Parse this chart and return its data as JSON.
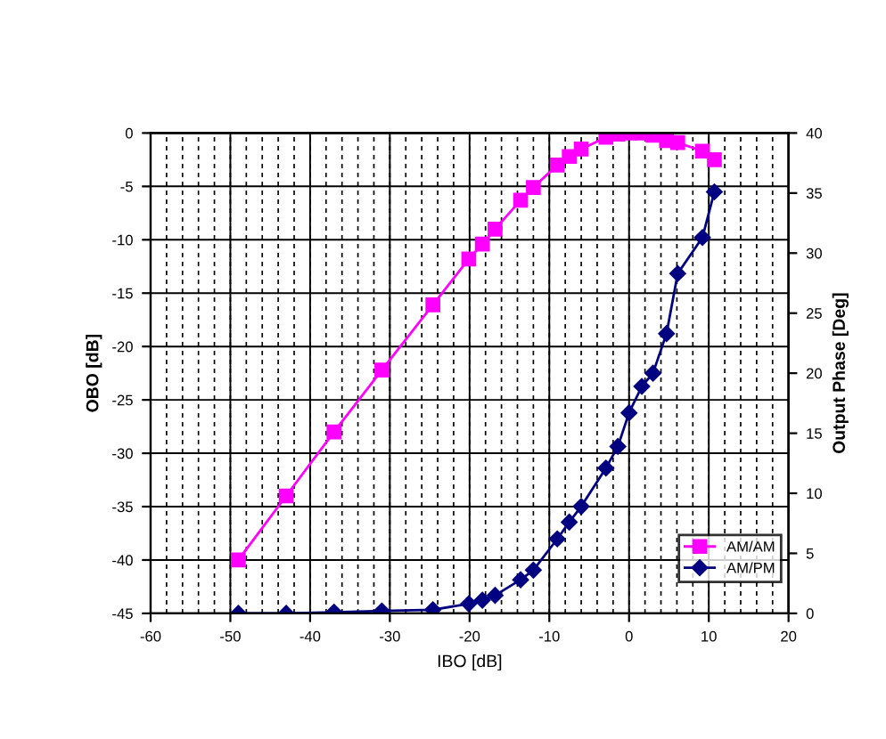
{
  "chart_data": {
    "type": "line",
    "xlabel": "IBO [dB]",
    "ylabel": "OBO [dB]",
    "y2label": "Output Phase [Deg]",
    "xlim": [
      -60,
      20
    ],
    "xticks": [
      -60,
      -50,
      -40,
      -30,
      -20,
      -10,
      0,
      10,
      20
    ],
    "ylim": [
      -45,
      0
    ],
    "yticks": [
      -45,
      -40,
      -35,
      -30,
      -25,
      -20,
      -15,
      -10,
      -5,
      0
    ],
    "y2lim": [
      0,
      40
    ],
    "y2ticks": [
      0,
      5,
      10,
      15,
      20,
      25,
      30,
      35,
      40
    ],
    "grid": true,
    "legend": "bottom right",
    "line_style": "solid",
    "series": [
      {
        "name": "AM/AM",
        "color": "#ff00ff",
        "marker": "square",
        "x": [
          -49,
          -43,
          -37,
          -31,
          -24.6,
          -20.1,
          -18.4,
          -16.8,
          -13.6,
          -12,
          -9,
          -7.5,
          -6,
          -2.9,
          -1.4,
          0,
          1.6,
          3,
          4.7,
          6.1,
          9.2,
          10.7
        ],
        "values": [
          -40,
          -34,
          -28,
          -22.2,
          -16.1,
          -11.8,
          -10.4,
          -9,
          -6.3,
          -5.1,
          -3,
          -2.2,
          -1.5,
          -0.4,
          -0.1,
          0,
          0,
          -0.2,
          -0.7,
          -0.9,
          -1.7,
          -2.5
        ]
      },
      {
        "name": "AM/PM",
        "color": "#000080",
        "marker": "diamond",
        "axis": "y2",
        "x": [
          -49,
          -43,
          -37,
          -31,
          -24.6,
          -20.1,
          -18.4,
          -16.8,
          -13.6,
          -12,
          -9,
          -7.5,
          -6,
          -2.9,
          -1.4,
          0,
          1.6,
          3,
          4.7,
          6.1,
          9.2,
          10.7
        ],
        "values": [
          0,
          0,
          0.1,
          0.2,
          0.3,
          0.8,
          1.1,
          1.5,
          2.8,
          3.6,
          6.2,
          7.6,
          8.9,
          12.1,
          13.9,
          16.7,
          18.9,
          20,
          23.3,
          28.3,
          31.3,
          35.1
        ]
      }
    ]
  }
}
